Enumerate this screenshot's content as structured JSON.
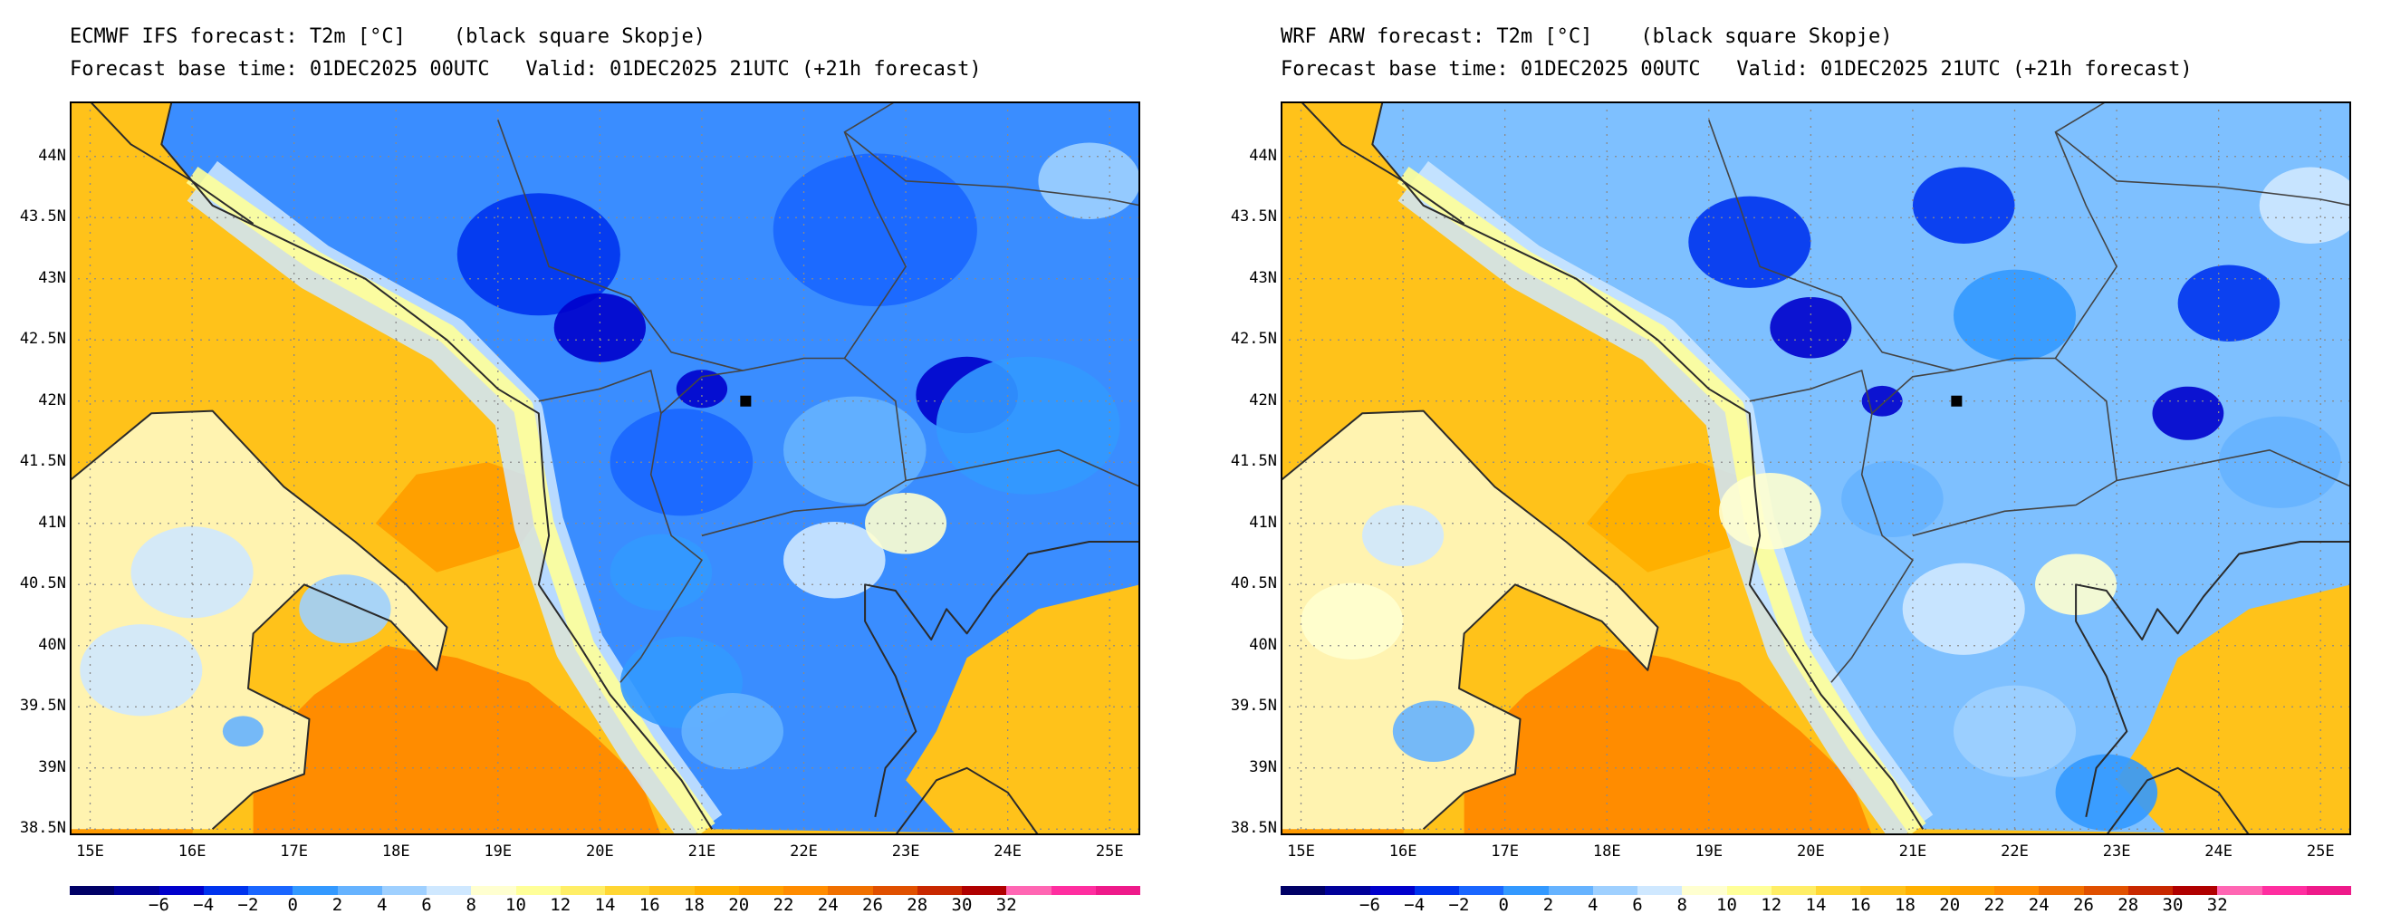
{
  "panels": [
    {
      "title": "ECMWF IFS forecast: T2m [°C]    (black square Skopje)",
      "subtitle": "Forecast base time: 01DEC2025 00UTC   Valid: 01DEC2025 21UTC (+21h forecast)",
      "model": "ifs"
    },
    {
      "title": "WRF ARW forecast: T2m [°C]    (black square Skopje)",
      "subtitle": "Forecast base time: 01DEC2025 00UTC   Valid: 01DEC2025 21UTC (+21h forecast)",
      "model": "wrf"
    }
  ],
  "map": {
    "lon_range": [
      14.8,
      25.3
    ],
    "lat_range": [
      38.45,
      44.45
    ],
    "lon_ticks": [
      15,
      16,
      17,
      18,
      19,
      20,
      21,
      22,
      23,
      24,
      25
    ],
    "lon_labels": [
      "15E",
      "16E",
      "17E",
      "18E",
      "19E",
      "20E",
      "21E",
      "22E",
      "23E",
      "24E",
      "25E"
    ],
    "lat_ticks": [
      38.5,
      39,
      39.5,
      40,
      40.5,
      41,
      41.5,
      42,
      42.5,
      43,
      43.5,
      44
    ],
    "lat_labels": [
      "38.5N",
      "39N",
      "39.5N",
      "40N",
      "40.5N",
      "41N",
      "41.5N",
      "42N",
      "42.5N",
      "43N",
      "43.5N",
      "44N"
    ],
    "skopje": {
      "lon": 21.43,
      "lat": 42.0
    },
    "grid": "dotted"
  },
  "colorbar": {
    "colors": [
      "#000066",
      "#000099",
      "#0000cc",
      "#0033ee",
      "#1a66ff",
      "#3399ff",
      "#66b3ff",
      "#9fd0ff",
      "#cfe8ff",
      "#ffffd0",
      "#ffff99",
      "#ffee66",
      "#ffd633",
      "#ffc21a",
      "#ffb000",
      "#ffa000",
      "#ff8c00",
      "#f07000",
      "#e05000",
      "#c82800",
      "#b00000",
      "#ff66b3",
      "#ff2ea0",
      "#ee1a8a"
    ],
    "labels": [
      "−6",
      "−4",
      "−2",
      "0",
      "2",
      "4",
      "6",
      "8",
      "10",
      "12",
      "14",
      "16",
      "18",
      "20",
      "22",
      "24",
      "26",
      "28",
      "30",
      "32"
    ]
  },
  "palette": {
    "land_cold": "#1a66ff",
    "sea_warm": "#ffc21a",
    "coast": "#333333"
  }
}
